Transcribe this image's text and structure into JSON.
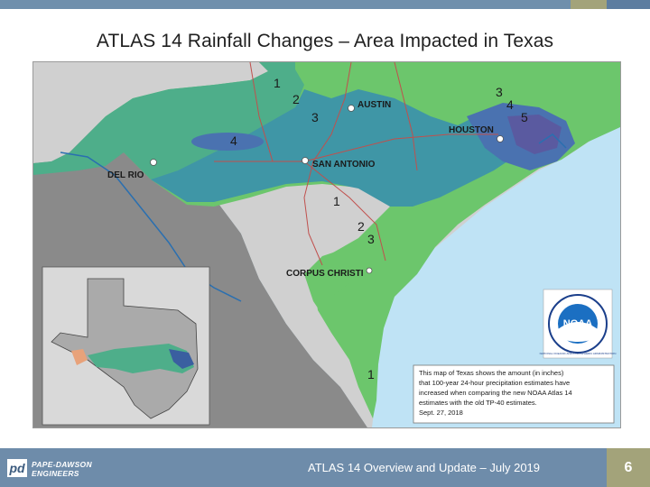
{
  "slide": {
    "title": "ATLAS 14 Rainfall Changes – Area Impacted in Texas",
    "footer_text": "ATLAS 14 Overview and Update – July 2019",
    "page_number": "6",
    "colors": {
      "accent_blue": "#6e8caa",
      "accent_olive": "#a3a37a",
      "gulf": "#bfe3f5",
      "land_outside": "#8a8a8a",
      "land_texas": "#d0d0d0",
      "zone_1": "#6cc66c",
      "zone_2": "#4eae8a",
      "zone_3": "#3f96a6",
      "zone_4": "#4a72b0",
      "zone_5": "#5a5aa0"
    }
  },
  "logo": {
    "mark": "pd",
    "line1": "PAPE-DAWSON",
    "line2": "ENGINEERS"
  },
  "map": {
    "cities": {
      "austin": "AUSTIN",
      "houston": "HOUSTON",
      "san_antonio": "SAN ANTONIO",
      "del_rio": "DEL RIO",
      "corpus_christi": "CORPUS CHRISTI"
    },
    "zone_labels": {
      "n1_top": "1",
      "n2_top": "2",
      "n3_top": "3",
      "n4_west": "4",
      "n3_houston": "3",
      "n4_houston": "4",
      "n5_houston": "5",
      "n1_south": "1",
      "n2_south": "2",
      "n3_south": "3",
      "n1_coast": "1"
    },
    "legend_text": [
      "This map of Texas shows the amount (in inches)",
      "that 100-year 24-hour precipitation estimates have",
      "increased when comparing the new NOAA Atlas 14",
      "estimates with the old TP-40 estimates.",
      "Sept. 27, 2018"
    ],
    "noaa_logo": "NOAA",
    "noaa_ring": "NATIONAL OCEANIC AND ATMOSPHERIC ADMINISTRATION"
  }
}
